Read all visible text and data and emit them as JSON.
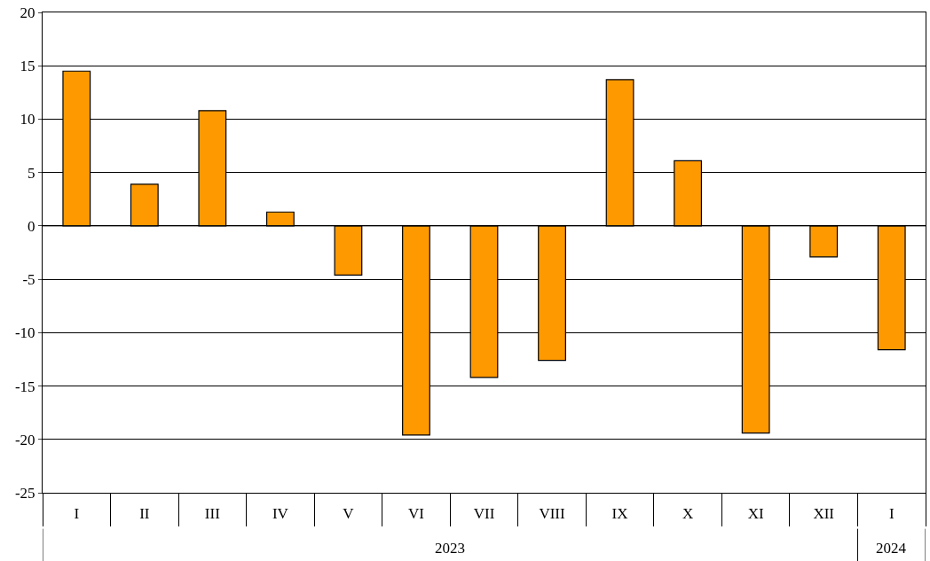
{
  "chart_data": {
    "type": "bar",
    "categories": [
      "I",
      "II",
      "III",
      "IV",
      "V",
      "VI",
      "VII",
      "VIII",
      "IX",
      "X",
      "XI",
      "XII",
      "I"
    ],
    "values": [
      14.5,
      3.9,
      10.8,
      1.3,
      -4.6,
      -19.6,
      -14.2,
      -12.6,
      13.7,
      6.1,
      -19.4,
      -2.9,
      -11.6
    ],
    "color": "#ff9900",
    "ylim": [
      -25,
      20
    ],
    "yticks": [
      -25,
      -20,
      -15,
      -10,
      -5,
      0,
      5,
      10,
      15,
      20
    ],
    "grid": "y",
    "annotations": [
      "2023",
      "2024"
    ]
  }
}
